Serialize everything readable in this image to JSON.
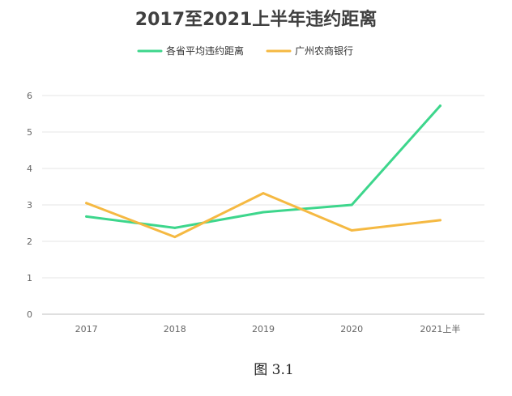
{
  "chart_data": {
    "type": "line",
    "title": "2017至2021上半年违约距离",
    "categories": [
      "2017",
      "2018",
      "2019",
      "2020",
      "2021上半"
    ],
    "ylim": [
      0,
      6
    ],
    "yticks": [
      "0",
      "1",
      "2",
      "3",
      "4",
      "5",
      "6"
    ],
    "grid": true,
    "legend_position": "top-center",
    "series": [
      {
        "name": "各省平均违约距离",
        "color": "#3dd68c",
        "values": [
          2.68,
          2.37,
          2.8,
          3.0,
          5.72
        ]
      },
      {
        "name": "广州农商银行",
        "color": "#f5b942",
        "values": [
          3.05,
          2.12,
          3.32,
          2.3,
          2.58
        ]
      }
    ]
  },
  "caption": "图 3.1"
}
